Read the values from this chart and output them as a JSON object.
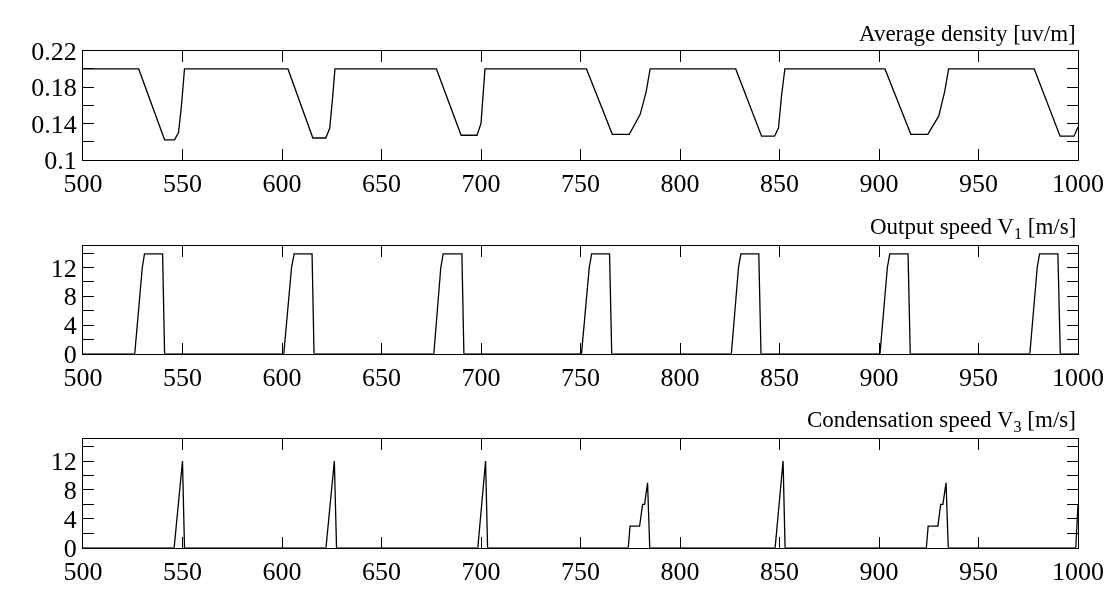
{
  "chart_data": [
    {
      "type": "line",
      "title": "Average density [uv/m]",
      "color": "#000000",
      "marker": "none",
      "line_style": "solid",
      "x": [
        500,
        528,
        541,
        546,
        548,
        549.5,
        551,
        603,
        615.5,
        622,
        624,
        625.5,
        626.6,
        677.6,
        690,
        698,
        700,
        701,
        702,
        753,
        766,
        774.5,
        780,
        783,
        785,
        828,
        841,
        847.5,
        849.5,
        851,
        852.7,
        903,
        916,
        924.5,
        930,
        933,
        935,
        978,
        991,
        998,
        1000
      ],
      "values": [
        0.2,
        0.2,
        0.122,
        0.122,
        0.13,
        0.16,
        0.2,
        0.2,
        0.124,
        0.124,
        0.135,
        0.17,
        0.2,
        0.2,
        0.127,
        0.127,
        0.14,
        0.17,
        0.2,
        0.2,
        0.128,
        0.128,
        0.15,
        0.175,
        0.2,
        0.2,
        0.126,
        0.126,
        0.135,
        0.17,
        0.2,
        0.2,
        0.128,
        0.128,
        0.148,
        0.175,
        0.2,
        0.2,
        0.126,
        0.126,
        0.136
      ],
      "xlim": [
        500,
        1000
      ],
      "ylim": [
        0.1,
        0.22
      ],
      "xticks": [
        500,
        550,
        600,
        650,
        700,
        750,
        800,
        850,
        900,
        950,
        1000
      ],
      "yticks": [
        0.1,
        {
          "value": 0.12,
          "label": null
        },
        0.14,
        {
          "value": 0.16,
          "label": null
        },
        0.18,
        {
          "value": 0.2,
          "label": null
        },
        0.22
      ]
    },
    {
      "type": "line",
      "title": "Output speed V$_{1}$ [m/s]",
      "color": "#000000",
      "marker": "none",
      "line_style": "solid",
      "x": [
        500,
        526,
        529.8,
        530.9,
        540,
        541,
        600.9,
        604.8,
        606.1,
        615.1,
        616.1,
        676.3,
        679.8,
        681,
        690.4,
        691.4,
        750.5,
        754.4,
        755.6,
        764.6,
        765.7,
        825.8,
        829.4,
        830.6,
        839.6,
        840.7,
        900.5,
        904.2,
        905.4,
        914.6,
        915.7,
        975.8,
        979.5,
        980.7,
        989.9,
        991.1,
        1000
      ],
      "values": [
        0,
        0,
        12,
        13.9,
        13.9,
        0,
        0,
        12,
        13.9,
        13.9,
        0,
        0,
        12,
        13.9,
        13.9,
        0,
        0,
        12,
        13.9,
        13.9,
        0,
        0,
        12,
        13.9,
        13.9,
        0,
        0,
        12,
        13.9,
        13.9,
        0,
        0,
        12,
        13.9,
        13.9,
        0,
        0
      ],
      "xlim": [
        500,
        1000
      ],
      "ylim": [
        0,
        15
      ],
      "xticks": [
        500,
        550,
        600,
        650,
        700,
        750,
        800,
        850,
        900,
        950,
        1000
      ],
      "yticks": [
        0,
        {
          "value": 2,
          "label": null
        },
        4,
        {
          "value": 6,
          "label": null
        },
        8,
        {
          "value": 10,
          "label": null
        },
        12,
        {
          "value": 14,
          "label": null
        }
      ]
    },
    {
      "type": "line",
      "title": "Condensation speed V$_{3}$ [m/s]",
      "color": "#000000",
      "marker": "none",
      "line_style": "solid",
      "x": [
        500,
        545.8,
        550,
        551,
        622.1,
        626.3,
        627.4,
        698.4,
        702.3,
        703.3,
        774,
        774.9,
        779.7,
        781.2,
        782.2,
        783.7,
        784.8,
        847.8,
        851.8,
        852.8,
        923.8,
        924.7,
        929.6,
        931,
        932.1,
        933.7,
        934.8,
        998.9,
        1000
      ],
      "values": [
        0,
        0,
        12,
        0,
        0,
        12,
        0,
        0,
        12,
        0,
        0,
        3,
        3,
        6,
        6,
        9,
        0,
        0,
        12,
        0,
        0,
        3,
        3,
        6,
        6,
        9,
        0,
        0,
        6
      ],
      "xlim": [
        500,
        1000
      ],
      "ylim": [
        0,
        15
      ],
      "xticks": [
        500,
        550,
        600,
        650,
        700,
        750,
        800,
        850,
        900,
        950,
        1000
      ],
      "yticks": [
        0,
        {
          "value": 2,
          "label": null
        },
        4,
        {
          "value": 6,
          "label": null
        },
        8,
        {
          "value": 10,
          "label": null
        },
        12,
        {
          "value": 14,
          "label": null
        }
      ]
    }
  ]
}
